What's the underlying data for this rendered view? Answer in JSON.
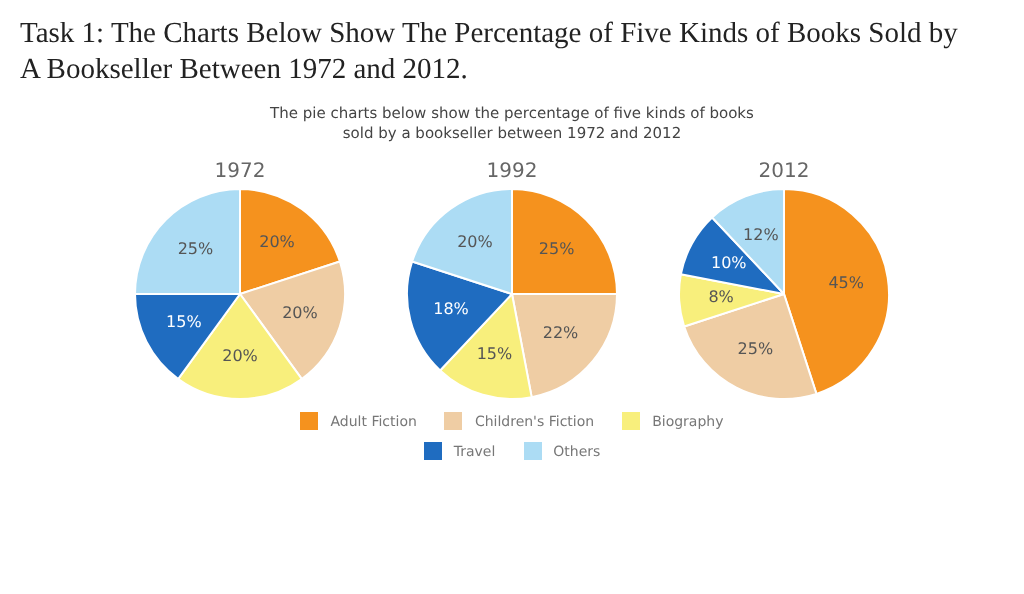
{
  "chart_data": [
    {
      "type": "other",
      "title": "Task 1:  The Charts Below Show The Percentage of Five Kinds of Books Sold by A Bookseller Between 1972 and 2012.",
      "subtitle": "The pie charts below show the percentage of five kinds of books sold by a bookseller between 1972 and 2012"
    },
    {
      "type": "pie",
      "title": "1972",
      "categories": [
        "Adult Fiction",
        "Children's Fiction",
        "Biography",
        "Travel",
        "Others"
      ],
      "values": [
        20,
        20,
        20,
        15,
        25
      ],
      "colors": [
        "#f5921e",
        "#efcda4",
        "#f8ef7c",
        "#1f6cc0",
        "#acdcf4"
      ],
      "value_labels": [
        "20%",
        "20%",
        "20%",
        "15%",
        "25%"
      ],
      "legend": "bottom"
    },
    {
      "type": "pie",
      "title": "1992",
      "categories": [
        null,
        null,
        null,
        null,
        null
      ],
      "values": [
        25,
        22,
        15,
        18,
        20
      ],
      "colors": [
        "#f5921e",
        "#efcda4",
        "#f8ef7c",
        "#1f6cc0",
        "#acdcf4"
      ],
      "value_labels": [
        "25%",
        "22%",
        "15%",
        "18%",
        "20%"
      ]
    },
    {
      "type": "pie",
      "title": "2012",
      "categories": [
        null,
        null,
        null,
        null,
        null
      ],
      "values": [
        45,
        25,
        8,
        10,
        12
      ],
      "colors": [
        "#f5921e",
        "#efcda4",
        "#f8ef7c",
        "#1f6cc0",
        "#acdcf4"
      ],
      "value_labels": [
        "45%",
        "25%",
        "8%",
        "10%",
        "12%"
      ]
    }
  ]
}
